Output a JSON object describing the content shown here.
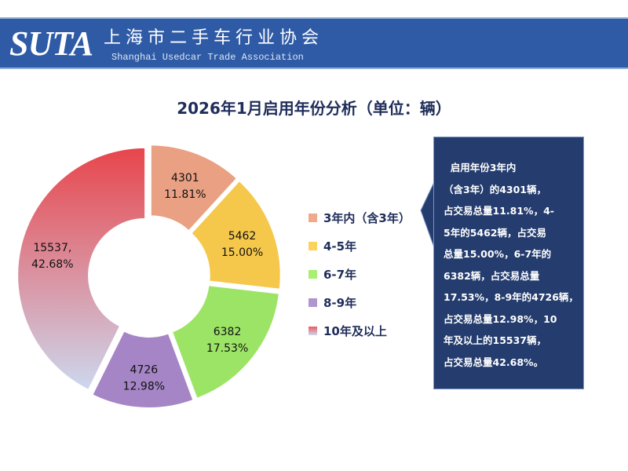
{
  "header": {
    "logo": "SUTA",
    "cn_name": "上海市二手车行业协会",
    "en_name": "Shanghai Usedcar Trade Association"
  },
  "chart_data": {
    "type": "pie",
    "donut": true,
    "title": "2026年1月启用年份分析（单位：辆）",
    "start_angle": "12 o'clock, clockwise",
    "legend_placement": "right",
    "categories": [
      "3年内（含3年）",
      "4-5年",
      "6-7年",
      "8-9年",
      "10年及以上"
    ],
    "values": [
      4301,
      5462,
      6382,
      4726,
      15537
    ],
    "percentages": [
      "11.81%",
      "15.00%",
      "17.53%",
      "12.98%",
      "42.68%"
    ],
    "data_labels": [
      [
        "4301",
        "11.81%"
      ],
      [
        "5462",
        "15.00%"
      ],
      [
        "6382",
        "17.53%"
      ],
      [
        "4726",
        "12.98%"
      ],
      [
        "15537,",
        "42.68%"
      ]
    ],
    "colors": [
      "#e8a184",
      "#f5c84c",
      "#9ce466",
      "#a585c6",
      "gradient #e8484e→#cdd6ec"
    ]
  },
  "callout": {
    "lines": [
      "  启用年份3年内",
      "（含3年）的4301辆，",
      "占交易总量11.81%，4-",
      "5年的5462辆，占交易",
      "总量15.00%，6-7年的",
      "6382辆，占交易总量",
      "17.53%，8-9年的4726辆，",
      "占交易总量12.98%，10",
      "年及以上的15537辆，",
      "占交易总量42.68%。"
    ]
  }
}
